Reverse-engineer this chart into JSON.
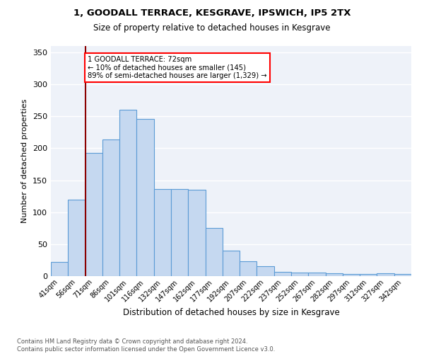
{
  "title1": "1, GOODALL TERRACE, KESGRAVE, IPSWICH, IP5 2TX",
  "title2": "Size of property relative to detached houses in Kesgrave",
  "xlabel": "Distribution of detached houses by size in Kesgrave",
  "ylabel": "Number of detached properties",
  "categories": [
    "41sqm",
    "56sqm",
    "71sqm",
    "86sqm",
    "101sqm",
    "116sqm",
    "132sqm",
    "147sqm",
    "162sqm",
    "177sqm",
    "192sqm",
    "207sqm",
    "222sqm",
    "237sqm",
    "252sqm",
    "267sqm",
    "282sqm",
    "297sqm",
    "312sqm",
    "327sqm",
    "342sqm"
  ],
  "values": [
    22,
    120,
    193,
    214,
    260,
    246,
    136,
    136,
    135,
    75,
    40,
    23,
    15,
    7,
    6,
    5,
    4,
    3,
    3,
    4,
    3
  ],
  "bar_color": "#c5d8f0",
  "bar_edge_color": "#5b9bd5",
  "vline_x_index": 2,
  "vline_color": "#8b0000",
  "annotation_text": "1 GOODALL TERRACE: 72sqm\n← 10% of detached houses are smaller (145)\n89% of semi-detached houses are larger (1,329) →",
  "annotation_box_color": "white",
  "annotation_box_edge": "red",
  "footer_text": "Contains HM Land Registry data © Crown copyright and database right 2024.\nContains public sector information licensed under the Open Government Licence v3.0.",
  "ylim": [
    0,
    360
  ],
  "yticks": [
    0,
    50,
    100,
    150,
    200,
    250,
    300,
    350
  ],
  "bg_color": "#eef2f9",
  "grid_color": "white"
}
